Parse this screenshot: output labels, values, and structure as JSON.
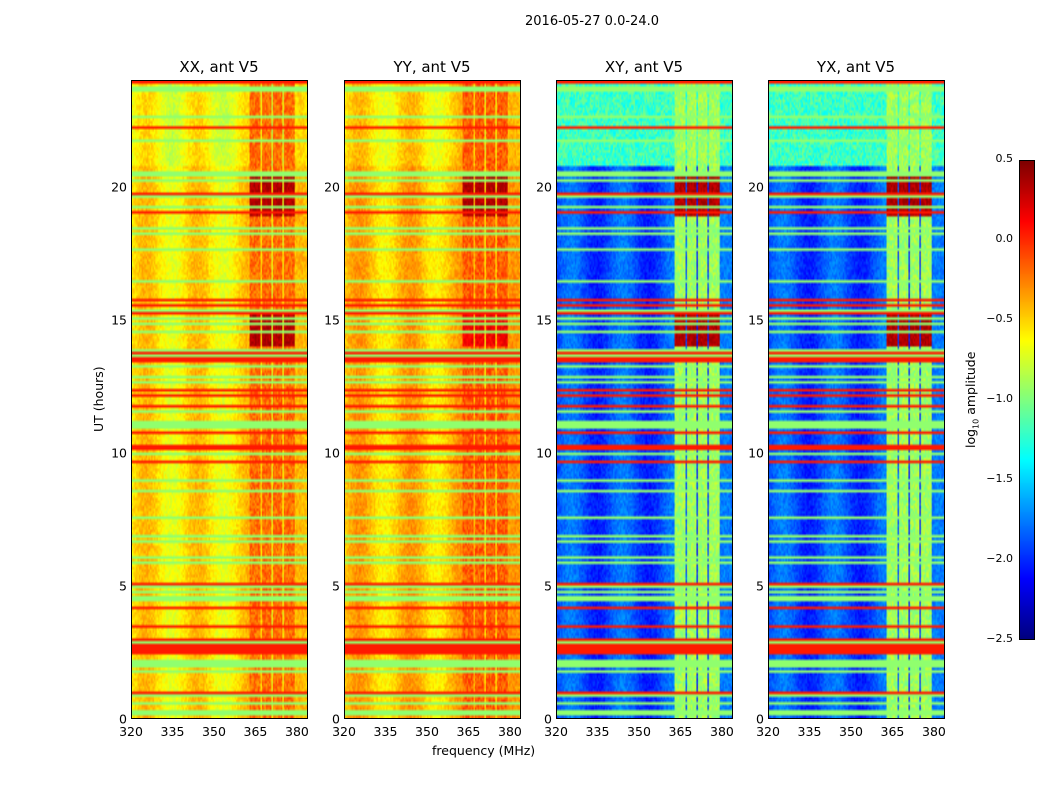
{
  "suptitle": "2016-05-27 0.0-24.0",
  "chart_data": [
    {
      "type": "heatmap",
      "title": "XX, ant V5",
      "xlabel": "",
      "ylabel": "UT (hours)",
      "xlim": [
        320,
        384
      ],
      "ylim": [
        0,
        24
      ],
      "base_log10_amp": -0.55,
      "band_log10_amp": -0.2,
      "flare_log10_amp": 0.45
    },
    {
      "type": "heatmap",
      "title": "YY, ant V5",
      "xlabel": "frequency (MHz)",
      "ylabel": "",
      "xlim": [
        320,
        384
      ],
      "ylim": [
        0,
        24
      ],
      "base_log10_amp": -0.45,
      "band_log10_amp": -0.15,
      "flare_log10_amp": 0.45
    },
    {
      "type": "heatmap",
      "title": "XY, ant V5",
      "xlabel": "",
      "ylabel": "",
      "xlim": [
        320,
        384
      ],
      "ylim": [
        0,
        24
      ],
      "base_log10_amp": -1.9,
      "band_log10_amp": -0.9,
      "flare_log10_amp": 0.45
    },
    {
      "type": "heatmap",
      "title": "YX, ant V5",
      "xlabel": "",
      "ylabel": "",
      "xlim": [
        320,
        384
      ],
      "ylim": [
        0,
        24
      ],
      "base_log10_amp": -1.9,
      "band_log10_amp": -0.9,
      "flare_log10_amp": 0.45
    }
  ],
  "x_ticks": [
    "320",
    "335",
    "350",
    "365",
    "380"
  ],
  "x_tick_values": [
    320,
    335,
    350,
    365,
    380
  ],
  "y_ticks": [
    "0",
    "5",
    "10",
    "15",
    "20"
  ],
  "y_tick_values": [
    0,
    5,
    10,
    15,
    20
  ],
  "rfi_bands_mhz": [
    [
      363,
      367
    ],
    [
      367.5,
      371
    ],
    [
      371.5,
      375
    ],
    [
      375.5,
      379.5
    ]
  ],
  "flare_hours": [
    [
      18.9,
      20.4
    ],
    [
      14,
      15.3
    ]
  ],
  "colorbar": {
    "label": "log10 amplitude",
    "label_main": "log",
    "label_sub": "10",
    "label_rest": " amplitude",
    "vmin": -2.5,
    "vmax": 0.5,
    "ticks": [
      "0.5",
      "0.0",
      "−0.5",
      "−1.0",
      "−1.5",
      "−2.0",
      "−2.5"
    ],
    "tick_values": [
      0.5,
      0,
      -0.5,
      -1,
      -1.5,
      -2,
      -2.5
    ],
    "colormap": "jet"
  }
}
